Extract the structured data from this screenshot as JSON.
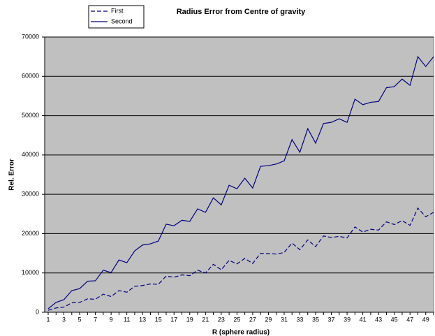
{
  "chart_data": {
    "type": "line",
    "title": "Radius Error from Centre of gravity",
    "x_label": "R (sphere radius)",
    "y_label": "Rel. Error",
    "categories": [
      1,
      null,
      3,
      null,
      5,
      null,
      7,
      null,
      9,
      null,
      11,
      null,
      13,
      null,
      15,
      null,
      17,
      null,
      19,
      null,
      21,
      null,
      23,
      null,
      25,
      null,
      27,
      null,
      29,
      null,
      31,
      null,
      33,
      null,
      35,
      null,
      37,
      null,
      39,
      null,
      41,
      null,
      43,
      null,
      45,
      null,
      47,
      null,
      49,
      null
    ],
    "series": [
      {
        "name": "First",
        "color": "#000080",
        "line_style": "dashed",
        "values": [
          500,
          1100,
          1300,
          2400,
          2500,
          3400,
          3300,
          4600,
          4000,
          5500,
          5100,
          6600,
          6800,
          7200,
          7100,
          9200,
          8900,
          9500,
          9300,
          10700,
          10000,
          12200,
          10800,
          13200,
          12300,
          13700,
          12400,
          15000,
          14900,
          14800,
          15200,
          17600,
          15900,
          18400,
          16700,
          19400,
          19000,
          19300,
          18900,
          21700,
          20400,
          21100,
          20900,
          23000,
          22300,
          23300,
          22100,
          26500,
          24300,
          25400
        ]
      },
      {
        "name": "Second",
        "color": "#000080",
        "line_style": "solid",
        "values": [
          900,
          2500,
          3200,
          5500,
          6000,
          7900,
          8000,
          10700,
          10100,
          13300,
          12600,
          15600,
          17100,
          17400,
          18100,
          22400,
          22000,
          23400,
          23100,
          26300,
          25400,
          29100,
          27300,
          32300,
          31400,
          34100,
          31600,
          37100,
          37300,
          37700,
          38500,
          43900,
          40700,
          46700,
          43000,
          48000,
          48300,
          49200,
          48300,
          54200,
          52800,
          53400,
          53600,
          57100,
          57400,
          59300,
          57700,
          65000,
          62500,
          65000
        ]
      }
    ],
    "ylim": [
      0,
      70000
    ],
    "yticks": [
      0,
      10000,
      20000,
      30000,
      40000,
      50000,
      60000,
      70000
    ],
    "grid": true,
    "plot_background": "#c0c0c0",
    "legend": "top-left"
  }
}
